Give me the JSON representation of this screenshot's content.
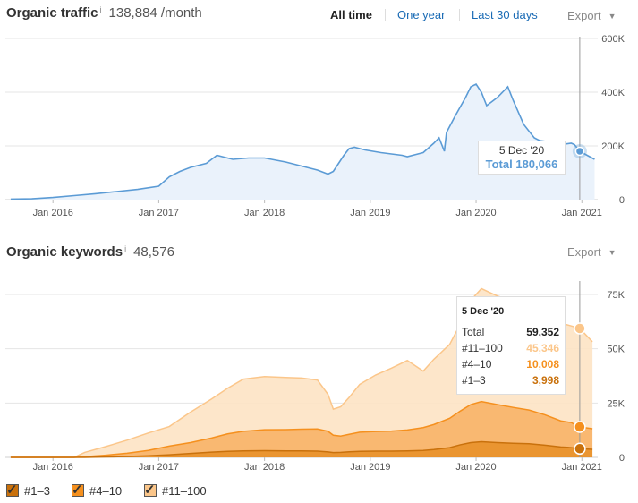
{
  "traffic": {
    "title": "Organic traffic",
    "info": "i",
    "value": "138,884 /month",
    "ranges": [
      "All time",
      "One year",
      "Last 30 days"
    ],
    "export_label": "Export",
    "tooltip": {
      "date": "5 Dec '20",
      "label": "Total 180,066"
    }
  },
  "keywords": {
    "title": "Organic keywords",
    "info": "i",
    "value": "48,576",
    "export_label": "Export",
    "tooltip": {
      "date": "5 Dec '20",
      "rows": [
        {
          "label": "Total",
          "value": "59,352",
          "color": "#222222"
        },
        {
          "label": "#11–100",
          "value": "45,346",
          "color": "#fbc68a"
        },
        {
          "label": "#4–10",
          "value": "10,008",
          "color": "#f5901e"
        },
        {
          "label": "#1–3",
          "value": "3,998",
          "color": "#c9710c"
        }
      ]
    }
  },
  "legend": [
    {
      "label": "#1–3",
      "color": "#c9710c"
    },
    {
      "label": "#4–10",
      "color": "#f5901e"
    },
    {
      "label": "#11–100",
      "color": "#fbc68a"
    }
  ],
  "chart_data": [
    {
      "type": "area",
      "title": "Organic traffic",
      "x_tick_labels": [
        "Jan 2016",
        "Jan 2017",
        "Jan 2018",
        "Jan 2019",
        "Jan 2020",
        "Jan 2021"
      ],
      "y_tick_labels": [
        "0",
        "200K",
        "400K",
        "600K"
      ],
      "ylim": [
        0,
        600000
      ],
      "xlim": [
        2015.55,
        2021.15
      ],
      "series": [
        {
          "name": "Total",
          "color": "#5b9bd5",
          "x": [
            2015.6,
            2015.8,
            2016.0,
            2016.2,
            2016.4,
            2016.6,
            2016.8,
            2017.0,
            2017.1,
            2017.2,
            2017.3,
            2017.45,
            2017.55,
            2017.6,
            2017.7,
            2017.85,
            2018.0,
            2018.2,
            2018.3,
            2018.35,
            2018.5,
            2018.6,
            2018.65,
            2018.75,
            2018.8,
            2018.85,
            2018.95,
            2019.1,
            2019.2,
            2019.3,
            2019.35,
            2019.45,
            2019.5,
            2019.6,
            2019.65,
            2019.7,
            2019.72,
            2019.8,
            2019.9,
            2019.95,
            2020.0,
            2020.05,
            2020.1,
            2020.2,
            2020.3,
            2020.35,
            2020.45,
            2020.55,
            2020.6,
            2020.7,
            2020.8,
            2020.9,
            2020.93,
            2020.98,
            2021.05,
            2021.12
          ],
          "values": [
            2000,
            3000,
            8000,
            15000,
            22000,
            30000,
            38000,
            50000,
            85000,
            105000,
            120000,
            135000,
            165000,
            160000,
            150000,
            155000,
            155000,
            140000,
            130000,
            125000,
            110000,
            95000,
            105000,
            165000,
            190000,
            195000,
            185000,
            175000,
            170000,
            165000,
            160000,
            170000,
            175000,
            210000,
            230000,
            180000,
            250000,
            310000,
            380000,
            420000,
            430000,
            400000,
            350000,
            380000,
            420000,
            370000,
            280000,
            230000,
            220000,
            215000,
            205000,
            210000,
            205000,
            180066,
            165000,
            150000
          ]
        }
      ]
    },
    {
      "type": "area",
      "title": "Organic keywords",
      "x_tick_labels": [
        "Jan 2016",
        "Jan 2017",
        "Jan 2018",
        "Jan 2019",
        "Jan 2020",
        "Jan 2021"
      ],
      "y_tick_labels": [
        "0",
        "25K",
        "50K",
        "75K"
      ],
      "ylim": [
        0,
        75000
      ],
      "xlim": [
        2015.55,
        2021.15
      ],
      "x": [
        2015.6,
        2016.0,
        2016.2,
        2016.3,
        2016.5,
        2016.7,
        2016.9,
        2017.1,
        2017.3,
        2017.5,
        2017.65,
        2017.8,
        2018.0,
        2018.2,
        2018.35,
        2018.5,
        2018.6,
        2018.65,
        2018.72,
        2018.8,
        2018.9,
        2019.05,
        2019.2,
        2019.35,
        2019.5,
        2019.6,
        2019.75,
        2019.85,
        2019.95,
        2020.05,
        2020.2,
        2020.35,
        2020.5,
        2020.65,
        2020.8,
        2020.9,
        2020.98,
        2021.1
      ],
      "series": [
        {
          "name": "#1–3",
          "color": "#c9710c",
          "values": [
            0,
            0,
            0,
            0,
            200,
            400,
            700,
            1200,
            1800,
            2400,
            2800,
            3000,
            3100,
            3000,
            3000,
            2900,
            2500,
            2200,
            2300,
            2600,
            2800,
            2900,
            2900,
            3000,
            3200,
            3600,
            4500,
            5800,
            6800,
            7200,
            6800,
            6500,
            6300,
            5600,
            4800,
            4500,
            3998,
            3700
          ]
        },
        {
          "name": "#4–10",
          "color": "#f5901e",
          "values": [
            0,
            0,
            0,
            300,
            800,
            1500,
            2500,
            4000,
            5000,
            6500,
            8000,
            9000,
            9600,
            9800,
            10000,
            10200,
            9500,
            8000,
            7500,
            8000,
            8800,
            9000,
            9200,
            9600,
            10500,
            11500,
            13500,
            15500,
            17500,
            18500,
            17500,
            16500,
            15500,
            14000,
            12000,
            11500,
            10008,
            9500
          ]
        },
        {
          "name": "#11–100",
          "color": "#fbc68a",
          "values": [
            0,
            0,
            0,
            2000,
            4000,
            6000,
            8000,
            9000,
            14000,
            18000,
            21000,
            24000,
            24500,
            24000,
            23500,
            22500,
            17000,
            12000,
            13500,
            17000,
            22000,
            26000,
            29000,
            32000,
            26000,
            30000,
            34000,
            40000,
            48000,
            52000,
            50000,
            49000,
            48000,
            46000,
            45000,
            44500,
            45346,
            40000
          ]
        }
      ]
    }
  ]
}
